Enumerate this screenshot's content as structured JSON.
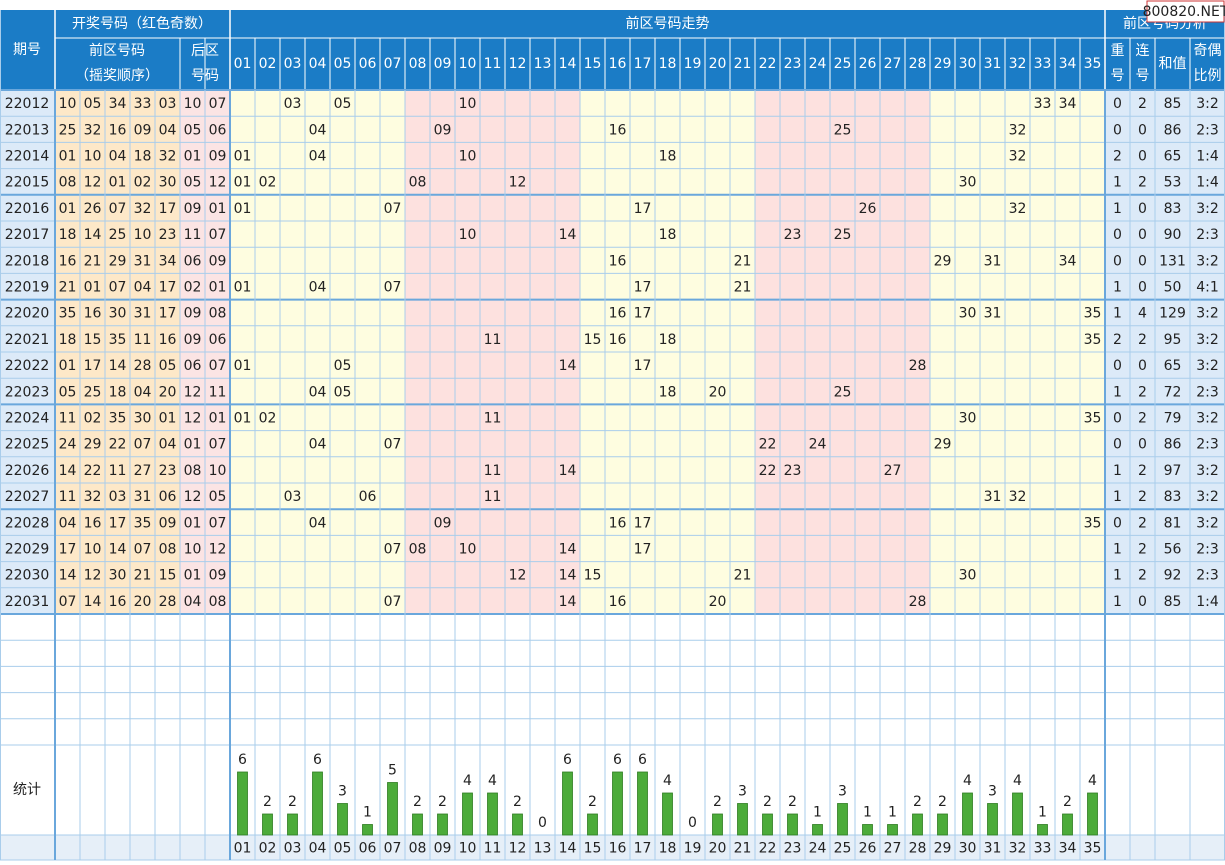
{
  "header": {
    "period": "期号",
    "draw": "开奖号码（红色奇数）",
    "trend": "前区号码走势",
    "analysis": "前区号码分析",
    "front": [
      "前区号码",
      "（摇奖顺序）"
    ],
    "back": [
      "后区",
      "号码"
    ],
    "repeat": [
      "重",
      "号"
    ],
    "consecutive": [
      "连",
      "号"
    ],
    "sum": "和值",
    "parity": [
      "奇偶",
      "比例"
    ]
  },
  "columns": [
    "01",
    "02",
    "03",
    "04",
    "05",
    "06",
    "07",
    "08",
    "09",
    "10",
    "11",
    "12",
    "13",
    "14",
    "15",
    "16",
    "17",
    "18",
    "19",
    "20",
    "21",
    "22",
    "23",
    "24",
    "25",
    "26",
    "27",
    "28",
    "29",
    "30",
    "31",
    "32",
    "33",
    "34",
    "35"
  ],
  "rows": [
    {
      "period": "22012",
      "front": [
        "10",
        "05",
        "34",
        "33",
        "03"
      ],
      "back": [
        "10",
        "07"
      ],
      "repeat": 0,
      "consecutive": 2,
      "sum": 85,
      "parity": "3:2"
    },
    {
      "period": "22013",
      "front": [
        "25",
        "32",
        "16",
        "09",
        "04"
      ],
      "back": [
        "05",
        "06"
      ],
      "repeat": 0,
      "consecutive": 0,
      "sum": 86,
      "parity": "2:3"
    },
    {
      "period": "22014",
      "front": [
        "01",
        "10",
        "04",
        "18",
        "32"
      ],
      "back": [
        "01",
        "09"
      ],
      "repeat": 2,
      "consecutive": 0,
      "sum": 65,
      "parity": "1:4"
    },
    {
      "period": "22015",
      "front": [
        "08",
        "12",
        "01",
        "02",
        "30"
      ],
      "back": [
        "05",
        "12"
      ],
      "repeat": 1,
      "consecutive": 2,
      "sum": 53,
      "parity": "1:4"
    },
    {
      "period": "22016",
      "front": [
        "01",
        "26",
        "07",
        "32",
        "17"
      ],
      "back": [
        "09",
        "01"
      ],
      "repeat": 1,
      "consecutive": 0,
      "sum": 83,
      "parity": "3:2"
    },
    {
      "period": "22017",
      "front": [
        "18",
        "14",
        "25",
        "10",
        "23"
      ],
      "back": [
        "11",
        "07"
      ],
      "repeat": 0,
      "consecutive": 0,
      "sum": 90,
      "parity": "2:3"
    },
    {
      "period": "22018",
      "front": [
        "16",
        "21",
        "29",
        "31",
        "34"
      ],
      "back": [
        "06",
        "09"
      ],
      "repeat": 0,
      "consecutive": 0,
      "sum": 131,
      "parity": "3:2"
    },
    {
      "period": "22019",
      "front": [
        "21",
        "01",
        "07",
        "04",
        "17"
      ],
      "back": [
        "02",
        "01"
      ],
      "repeat": 1,
      "consecutive": 0,
      "sum": 50,
      "parity": "4:1"
    },
    {
      "period": "22020",
      "front": [
        "35",
        "16",
        "30",
        "31",
        "17"
      ],
      "back": [
        "09",
        "08"
      ],
      "repeat": 1,
      "consecutive": 4,
      "sum": 129,
      "parity": "3:2"
    },
    {
      "period": "22021",
      "front": [
        "18",
        "15",
        "35",
        "11",
        "16"
      ],
      "back": [
        "09",
        "06"
      ],
      "repeat": 2,
      "consecutive": 2,
      "sum": 95,
      "parity": "3:2"
    },
    {
      "period": "22022",
      "front": [
        "01",
        "17",
        "14",
        "28",
        "05"
      ],
      "back": [
        "06",
        "07"
      ],
      "repeat": 0,
      "consecutive": 0,
      "sum": 65,
      "parity": "3:2"
    },
    {
      "period": "22023",
      "front": [
        "05",
        "25",
        "18",
        "04",
        "20"
      ],
      "back": [
        "12",
        "11"
      ],
      "repeat": 1,
      "consecutive": 2,
      "sum": 72,
      "parity": "2:3"
    },
    {
      "period": "22024",
      "front": [
        "11",
        "02",
        "35",
        "30",
        "01"
      ],
      "back": [
        "12",
        "01"
      ],
      "repeat": 0,
      "consecutive": 2,
      "sum": 79,
      "parity": "3:2"
    },
    {
      "period": "22025",
      "front": [
        "24",
        "29",
        "22",
        "07",
        "04"
      ],
      "back": [
        "01",
        "07"
      ],
      "repeat": 0,
      "consecutive": 0,
      "sum": 86,
      "parity": "2:3"
    },
    {
      "period": "22026",
      "front": [
        "14",
        "22",
        "11",
        "27",
        "23"
      ],
      "back": [
        "08",
        "10"
      ],
      "repeat": 1,
      "consecutive": 2,
      "sum": 97,
      "parity": "3:2"
    },
    {
      "period": "22027",
      "front": [
        "11",
        "32",
        "03",
        "31",
        "06"
      ],
      "back": [
        "12",
        "05"
      ],
      "repeat": 1,
      "consecutive": 2,
      "sum": 83,
      "parity": "3:2"
    },
    {
      "period": "22028",
      "front": [
        "04",
        "16",
        "17",
        "35",
        "09"
      ],
      "back": [
        "01",
        "07"
      ],
      "repeat": 0,
      "consecutive": 2,
      "sum": 81,
      "parity": "3:2"
    },
    {
      "period": "22029",
      "front": [
        "17",
        "10",
        "14",
        "07",
        "08"
      ],
      "back": [
        "10",
        "12"
      ],
      "repeat": 1,
      "consecutive": 2,
      "sum": 56,
      "parity": "2:3"
    },
    {
      "period": "22030",
      "front": [
        "14",
        "12",
        "30",
        "21",
        "15"
      ],
      "back": [
        "01",
        "09"
      ],
      "repeat": 1,
      "consecutive": 2,
      "sum": 92,
      "parity": "2:3"
    },
    {
      "period": "22031",
      "front": [
        "07",
        "14",
        "16",
        "20",
        "28"
      ],
      "back": [
        "04",
        "08"
      ],
      "repeat": 1,
      "consecutive": 0,
      "sum": 85,
      "parity": "1:4"
    }
  ],
  "stats": {
    "label": "统计",
    "counts": [
      6,
      2,
      2,
      6,
      3,
      1,
      5,
      2,
      2,
      4,
      4,
      2,
      0,
      6,
      2,
      6,
      6,
      4,
      0,
      2,
      3,
      2,
      2,
      1,
      3,
      1,
      1,
      2,
      2,
      4,
      3,
      4,
      1,
      2,
      4
    ]
  },
  "watermark": "800820.NET"
}
